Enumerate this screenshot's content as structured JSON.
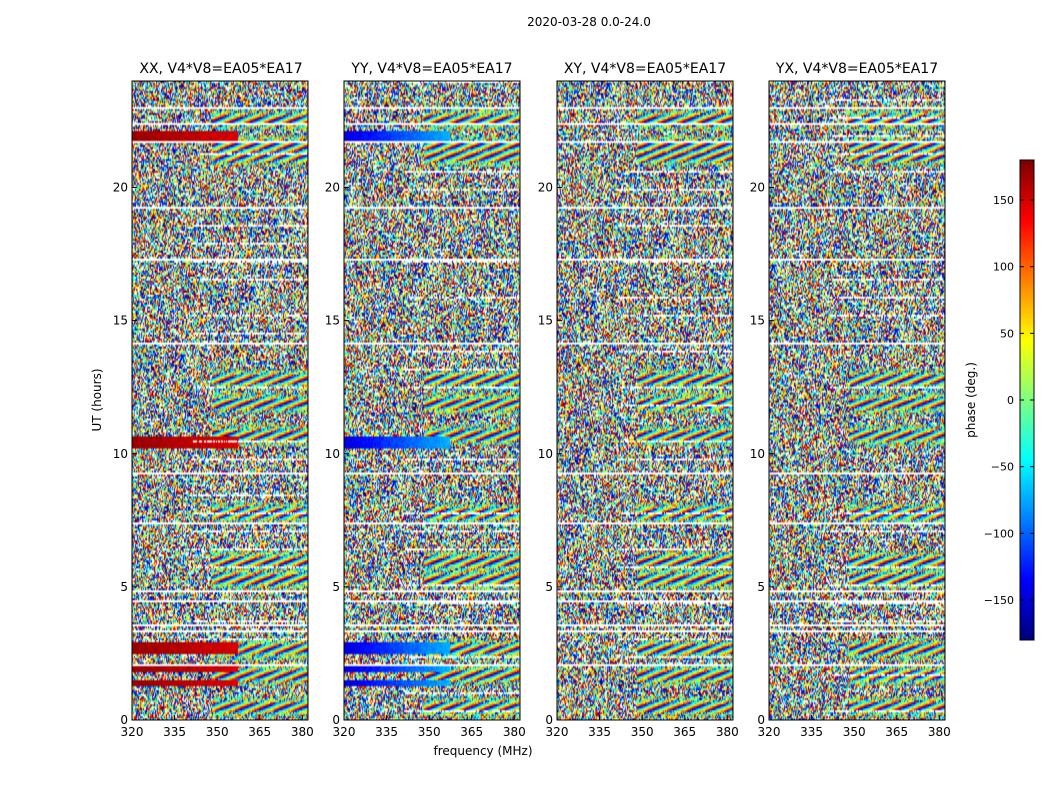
{
  "chart_data": {
    "type": "heatmap",
    "title": "2020-03-28 0.0-24.0",
    "xlabel": "frequency (MHz)",
    "ylabel": "UT (hours)",
    "xlim": [
      320,
      382
    ],
    "ylim": [
      0,
      24
    ],
    "xticks": [
      "320",
      "335",
      "350",
      "365",
      "380"
    ],
    "yticks": [
      "0",
      "5",
      "10",
      "15",
      "20"
    ],
    "panels": [
      {
        "title": "XX, V4*V8=EA05*EA17",
        "coherent_phase": 160
      },
      {
        "title": "YY, V4*V8=EA05*EA17",
        "coherent_phase": -110
      },
      {
        "title": "XY, V4*V8=EA05*EA17",
        "coherent_phase": null
      },
      {
        "title": "YX, V4*V8=EA05*EA17",
        "coherent_phase": null
      }
    ],
    "colorbar": {
      "label": "phase (deg.)",
      "range": [
        -180,
        180
      ],
      "ticks": [
        "150",
        "100",
        "50",
        "0",
        "−50",
        "−100",
        "−150"
      ],
      "tick_values": [
        150,
        100,
        50,
        0,
        -50,
        -100,
        -150
      ],
      "colormap": "jet"
    },
    "flagged_rows_hours": [
      23.0,
      22.4,
      21.75,
      19.3,
      17.35,
      14.2,
      9.3,
      7.4,
      4.85,
      4.5,
      3.6,
      3.4,
      2.1
    ],
    "fringe_bands_hours": [
      22.6,
      21.6,
      21.2,
      12.8,
      11.9,
      10.7,
      7.8,
      6.0,
      5.3,
      2.7,
      1.7,
      0.5
    ],
    "coherent_rows_hours": [
      22.05,
      21.85,
      10.55,
      10.35,
      2.85,
      2.65,
      1.95,
      1.4
    ],
    "colors": {
      "flag": "#ffffff",
      "line": "#000000",
      "bg": "#ffffff"
    }
  }
}
